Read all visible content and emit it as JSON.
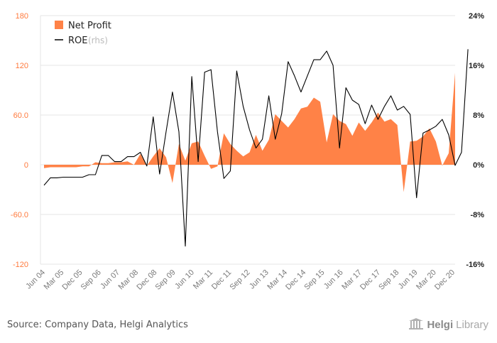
{
  "chart_data": {
    "type": "area",
    "title": "",
    "xlabel": "",
    "ylabel": "",
    "ylim": [
      -120,
      180
    ],
    "y2lim": [
      -16,
      24
    ],
    "left_ticks": [
      "180",
      "120",
      "60.0",
      "0",
      "-60.0",
      "-120"
    ],
    "right_ticks": [
      "24%",
      "16%",
      "8%",
      "0%",
      "-8%",
      "-16%"
    ],
    "x_tick_labels": [
      "Jun 04",
      "Mar 05",
      "Dec 05",
      "Sep 06",
      "Jun 07",
      "Mar 08",
      "Dec 08",
      "Sep 09",
      "Jun 10",
      "Mar 11",
      "Dec 11",
      "Sep 12",
      "Jun 13",
      "Mar 14",
      "Dec 14",
      "Sep 15",
      "Jun 16",
      "Mar 17",
      "Dec 17",
      "Sep 18",
      "Jun 19",
      "Mar 20",
      "Dec 20"
    ],
    "legend_position": "top-left",
    "grid": true,
    "series": [
      {
        "name": "Net Profit",
        "axis": "left",
        "kind": "area",
        "values": [
          -4,
          -3,
          -3,
          -3,
          -3,
          -3,
          -2,
          -2,
          3,
          2,
          2,
          3,
          3,
          4,
          0,
          13,
          -1,
          10,
          20,
          9,
          -22,
          25,
          5,
          26,
          28,
          11,
          -5,
          -2,
          38,
          25,
          17,
          10,
          15,
          36,
          17,
          30,
          61,
          53,
          45,
          55,
          68,
          70,
          81,
          76,
          27,
          61,
          53,
          49,
          35,
          51,
          41,
          51,
          63,
          52,
          55,
          48,
          -33,
          28,
          29,
          34,
          44,
          28,
          -1,
          14,
          111
        ]
      },
      {
        "name": "ROE",
        "note": "(rhs)",
        "axis": "right",
        "kind": "line",
        "values": [
          -3.3,
          -2.1,
          -2.1,
          -2.0,
          -2.0,
          -2.0,
          -2.0,
          -1.6,
          -1.6,
          1.5,
          1.5,
          0.5,
          0.5,
          1.3,
          1.3,
          2.0,
          -0.2,
          7.7,
          -1.5,
          5.3,
          11.7,
          5.3,
          -13.1,
          14.2,
          0.5,
          14.9,
          15.3,
          5.3,
          -2.2,
          -1.0,
          15.1,
          9.4,
          5.6,
          2.7,
          4.1,
          11.1,
          4.1,
          8.2,
          16.6,
          14.3,
          11.7,
          14.3,
          16.9,
          16.9,
          18.3,
          16.0,
          2.7,
          12.4,
          10.4,
          9.7,
          6.6,
          9.6,
          7.3,
          9.4,
          11.1,
          8.8,
          9.4,
          8.1,
          -5.3,
          5.1,
          5.6,
          6.2,
          7.3,
          4.8,
          -0.1,
          2.0,
          18.6
        ]
      }
    ],
    "colors": {
      "net_profit": "#ff8247",
      "roe": "#000000",
      "left_tick": "#ff7a3d",
      "grid": "#e4e4e4",
      "axis_label": "#7a7a7a"
    }
  },
  "source_text": "Source: Company Data, Helgi Analytics",
  "logo": {
    "icon": "helgi-library-icon",
    "bold": "Helgi",
    "rest": "Library"
  }
}
